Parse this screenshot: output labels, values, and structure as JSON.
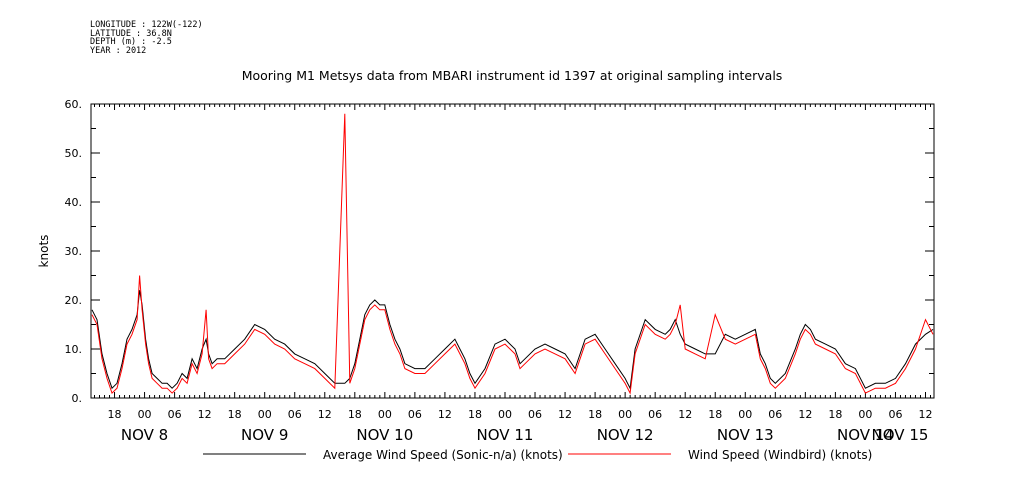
{
  "header": {
    "longitude": "LONGITUDE : 122W(-122)",
    "latitude": "LATITUDE : 36.8N",
    "depth": "DEPTH (m) : -2.5",
    "year": "YEAR : 2012"
  },
  "chart_data": {
    "type": "line",
    "title": "Mooring M1 Metsys data from MBARI instrument id 1397 at original sampling intervals",
    "ylabel": "knots",
    "xlabel": "",
    "ylim": [
      0,
      60
    ],
    "y_ticks": [
      "0.",
      "10.",
      "20.",
      "30.",
      "40.",
      "50.",
      "60."
    ],
    "x_hour_ticks": [
      {
        "t": 18,
        "label": "18"
      },
      {
        "t": 24,
        "label": "00"
      },
      {
        "t": 30,
        "label": "06"
      },
      {
        "t": 36,
        "label": "12"
      },
      {
        "t": 42,
        "label": "18"
      },
      {
        "t": 48,
        "label": "00"
      },
      {
        "t": 54,
        "label": "06"
      },
      {
        "t": 60,
        "label": "12"
      },
      {
        "t": 66,
        "label": "18"
      },
      {
        "t": 72,
        "label": "00"
      },
      {
        "t": 78,
        "label": "06"
      },
      {
        "t": 84,
        "label": "12"
      },
      {
        "t": 90,
        "label": "18"
      },
      {
        "t": 96,
        "label": "00"
      },
      {
        "t": 102,
        "label": "06"
      },
      {
        "t": 108,
        "label": "12"
      },
      {
        "t": 114,
        "label": "18"
      },
      {
        "t": 120,
        "label": "00"
      },
      {
        "t": 126,
        "label": "06"
      },
      {
        "t": 132,
        "label": "12"
      },
      {
        "t": 138,
        "label": "18"
      },
      {
        "t": 144,
        "label": "00"
      },
      {
        "t": 150,
        "label": "06"
      },
      {
        "t": 156,
        "label": "12"
      },
      {
        "t": 162,
        "label": "18"
      },
      {
        "t": 168,
        "label": "00"
      },
      {
        "t": 174,
        "label": "06"
      },
      {
        "t": 180,
        "label": "12"
      }
    ],
    "x_day_labels": [
      {
        "t": 24,
        "label": "NOV  8"
      },
      {
        "t": 48,
        "label": "NOV  9"
      },
      {
        "t": 72,
        "label": "NOV 10"
      },
      {
        "t": 96,
        "label": "NOV 11"
      },
      {
        "t": 120,
        "label": "NOV 12"
      },
      {
        "t": 144,
        "label": "NOV 13"
      },
      {
        "t": 168,
        "label": "NOV 14"
      },
      {
        "t": 192,
        "label": "NOV 15"
      }
    ],
    "x_range_hours": [
      13.3,
      181.7
    ],
    "legend_position": "bottom",
    "series": [
      {
        "name": "Average Wind Speed (Sonic-n/a) (knots)",
        "color": "#000000",
        "x": [
          13.5,
          14.5,
          15.5,
          16.5,
          17.5,
          18.5,
          19.5,
          20.5,
          21.5,
          22.5,
          23.0,
          23.5,
          24.2,
          24.8,
          25.5,
          26.5,
          27.5,
          28.5,
          29.5,
          30.5,
          31.5,
          32.5,
          33.5,
          34.5,
          35.5,
          36.3,
          36.8,
          37.5,
          38.5,
          40,
          42,
          44,
          46,
          48,
          50,
          52,
          54,
          56,
          58,
          60,
          62,
          64,
          65,
          66,
          67,
          68,
          69,
          70,
          71,
          72,
          73,
          74,
          75,
          76,
          78,
          80,
          82,
          84,
          86,
          87,
          88,
          89,
          90,
          92,
          94,
          96,
          98,
          99,
          100,
          102,
          104,
          106,
          108,
          110,
          112,
          114,
          116,
          118,
          120,
          121,
          122,
          124,
          126,
          128,
          129,
          130,
          131,
          132,
          134,
          136,
          138,
          140,
          142,
          144,
          146,
          147,
          148,
          149,
          150,
          152,
          154,
          155,
          156,
          157,
          158,
          160,
          162,
          164,
          166,
          168,
          170,
          172,
          174,
          176,
          178,
          180,
          181.5
        ],
        "y": [
          18,
          16,
          9,
          5,
          2,
          3,
          7,
          12,
          14,
          17,
          22,
          19,
          12,
          8,
          5,
          4,
          3,
          3,
          2,
          3,
          5,
          4,
          8,
          6,
          10,
          12,
          9,
          7,
          8,
          8,
          10,
          12,
          15,
          14,
          12,
          11,
          9,
          8,
          7,
          5,
          3,
          3,
          4,
          7,
          12,
          17,
          19,
          20,
          19,
          19,
          15,
          12,
          10,
          7,
          6,
          6,
          8,
          10,
          12,
          10,
          8,
          5,
          3,
          6,
          11,
          12,
          10,
          7,
          8,
          10,
          11,
          10,
          9,
          6,
          12,
          13,
          10,
          7,
          4,
          2,
          10,
          16,
          14,
          13,
          14,
          16,
          13,
          11,
          10,
          9,
          9,
          13,
          12,
          13,
          14,
          9,
          7,
          4,
          3,
          5,
          10,
          13,
          15,
          14,
          12,
          11,
          10,
          7,
          6,
          2,
          3,
          3,
          4,
          7,
          11,
          13,
          14
        ]
      },
      {
        "name": "Wind Speed (Windbird) (knots)",
        "color": "#ff0000",
        "x": [
          13.5,
          14.5,
          15.5,
          16.5,
          17.5,
          18.5,
          19.5,
          20.5,
          21.5,
          22.5,
          23.0,
          23.5,
          24.2,
          24.8,
          25.5,
          26.5,
          27.5,
          28.5,
          29.5,
          30.5,
          31.5,
          32.5,
          33.5,
          34.5,
          35.5,
          36.3,
          36.8,
          37.5,
          38.5,
          40,
          42,
          44,
          46,
          48,
          50,
          52,
          54,
          56,
          58,
          60,
          62,
          64,
          65,
          66,
          67,
          68,
          69,
          70,
          71,
          72,
          73,
          74,
          75,
          76,
          78,
          80,
          82,
          84,
          86,
          87,
          88,
          89,
          90,
          92,
          94,
          96,
          98,
          99,
          100,
          102,
          104,
          106,
          108,
          110,
          112,
          114,
          116,
          118,
          120,
          121,
          122,
          124,
          126,
          128,
          129,
          130,
          131,
          132,
          134,
          136,
          138,
          140,
          142,
          144,
          146,
          147,
          148,
          149,
          150,
          152,
          154,
          155,
          156,
          157,
          158,
          160,
          162,
          164,
          166,
          168,
          170,
          172,
          174,
          176,
          178,
          180,
          181.5
        ],
        "y": [
          17,
          15,
          8,
          4,
          1,
          2,
          6,
          11,
          13,
          16,
          25,
          18,
          11,
          7,
          4,
          3,
          2,
          2,
          1,
          2,
          4,
          3,
          7,
          5,
          9,
          18,
          8,
          6,
          7,
          7,
          9,
          11,
          14,
          13,
          11,
          10,
          8,
          7,
          6,
          4,
          2,
          58,
          3,
          6,
          11,
          16,
          18,
          19,
          18,
          18,
          14,
          11,
          9,
          6,
          5,
          5,
          7,
          9,
          11,
          9,
          7,
          4,
          2,
          5,
          10,
          11,
          9,
          6,
          7,
          9,
          10,
          9,
          8,
          5,
          11,
          12,
          9,
          6,
          3,
          1,
          9,
          15,
          13,
          12,
          13,
          15,
          19,
          10,
          9,
          8,
          17,
          12,
          11,
          12,
          13,
          8,
          6,
          3,
          2,
          4,
          9,
          12,
          14,
          13,
          11,
          10,
          9,
          6,
          5,
          1,
          2,
          2,
          3,
          6,
          10,
          16,
          13
        ]
      }
    ]
  }
}
